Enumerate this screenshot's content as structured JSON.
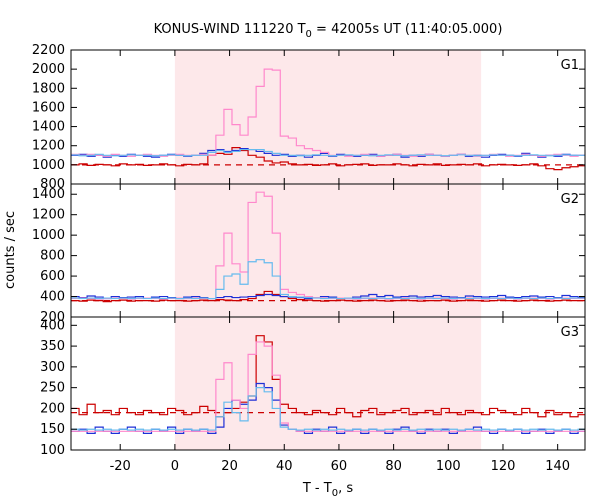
{
  "chart_data": {
    "type": "line",
    "title_main": "KONUS-WIND 111220 T",
    "title_sub": "0",
    "title_rest": " = 42005s UT (11:40:05.000)",
    "xlabel_main": "T - T",
    "xlabel_sub": "0",
    "xlabel_rest": ", s",
    "ylabel": "counts / sec",
    "xlim": [
      -38,
      150
    ],
    "xticks": [
      -20,
      0,
      20,
      40,
      60,
      80,
      100,
      120,
      140
    ],
    "highlight_interval": [
      0,
      112
    ],
    "grid": false,
    "colors": {
      "highlight": "#fde8ea",
      "G1": "#cc0000",
      "G2": "#1f2fd6",
      "G3": "#ff88cc",
      "G2_G3": "#66bbee",
      "background_level": "#cc0000",
      "axis": "#000000"
    },
    "bin_width": 2.944,
    "panels": [
      {
        "name": "G1",
        "ylim": [
          800,
          2200
        ],
        "yticks": [
          800,
          1000,
          1200,
          1400,
          1600,
          1800,
          2000,
          2200
        ],
        "yticklabels": [
          "800",
          "1000",
          "1200",
          "1400",
          "1600",
          "1800",
          "2000",
          "2200"
        ],
        "background_level": 1000,
        "series": [
          {
            "color_key": "G1",
            "values": [
              1000,
              1010,
              995,
              1005,
              1000,
              990,
              1010,
              1000,
              1005,
              995,
              1000,
              1010,
              1000,
              990,
              1005,
              1000,
              1010,
              1100,
              1120,
              1110,
              1180,
              1150,
              1100,
              1080,
              1040,
              1020,
              1030,
              1010,
              1000,
              1005,
              995,
              1000,
              1010,
              990,
              1000,
              1005,
              1010,
              995,
              1000,
              1000,
              1010,
              1000,
              990,
              1005,
              1000,
              1010,
              995,
              1000,
              1005,
              1000,
              1010,
              990,
              1000,
              1005,
              1000,
              995,
              1000,
              1010,
              990,
              960,
              950,
              970,
              980,
              990
            ]
          },
          {
            "color_key": "G2",
            "values": [
              1100,
              1110,
              1090,
              1100,
              1080,
              1100,
              1090,
              1110,
              1100,
              1090,
              1080,
              1100,
              1110,
              1100,
              1090,
              1100,
              1120,
              1150,
              1160,
              1140,
              1150,
              1170,
              1160,
              1140,
              1120,
              1100,
              1110,
              1090,
              1100,
              1080,
              1100,
              1120,
              1090,
              1110,
              1100,
              1090,
              1100,
              1110,
              1090,
              1100,
              1110,
              1080,
              1100,
              1090,
              1110,
              1100,
              1090,
              1100,
              1110,
              1090,
              1100,
              1080,
              1100,
              1110,
              1100,
              1090,
              1120,
              1100,
              1080,
              1100,
              1090,
              1110,
              1100,
              1100
            ]
          },
          {
            "color_key": "G3",
            "values": [
              1110,
              1100,
              1110,
              1100,
              1090,
              1110,
              1100,
              1090,
              1100,
              1110,
              1100,
              1090,
              1100,
              1110,
              1100,
              1100,
              1110,
              1100,
              1310,
              1580,
              1420,
              1310,
              1500,
              1820,
              2000,
              1990,
              1300,
              1280,
              1200,
              1170,
              1150,
              1130,
              1100,
              1100,
              1090,
              1100,
              1110,
              1100,
              1090,
              1100,
              1110,
              1100,
              1090,
              1100,
              1110,
              1100,
              1090,
              1100,
              1110,
              1100,
              1090,
              1100,
              1110,
              1100,
              1090,
              1100,
              1110,
              1100,
              1090,
              1100,
              1110,
              1100,
              1090,
              1100
            ]
          },
          {
            "color_key": "G2_G3",
            "values": [
              1105,
              1095,
              1100,
              1110,
              1100,
              1095,
              1100,
              1105,
              1100,
              1100,
              1095,
              1100,
              1105,
              1100,
              1095,
              1100,
              1100,
              1130,
              1150,
              1130,
              1140,
              1160,
              1160,
              1160,
              1140,
              1120,
              1100,
              1100,
              1095,
              1100,
              1105,
              1100,
              1095,
              1100,
              1105,
              1100,
              1100,
              1095,
              1100,
              1105,
              1100,
              1095,
              1100,
              1105,
              1100,
              1100,
              1095,
              1100,
              1105,
              1100,
              1095,
              1100,
              1105,
              1100,
              1100,
              1095,
              1100,
              1105,
              1100,
              1095,
              1100,
              1105,
              1100,
              1100
            ]
          }
        ]
      },
      {
        "name": "G2",
        "ylim": [
          200,
          1500
        ],
        "yticks": [
          200,
          400,
          600,
          800,
          1000,
          1200,
          1400
        ],
        "yticklabels": [
          "200",
          "400",
          "600",
          "800",
          "1000",
          "1200",
          "1400"
        ],
        "background_level": 360,
        "series": [
          {
            "color_key": "G1",
            "values": [
              360,
              355,
              365,
              360,
              350,
              360,
              365,
              355,
              360,
              360,
              355,
              365,
              360,
              360,
              355,
              360,
              365,
              360,
              370,
              365,
              360,
              370,
              380,
              420,
              450,
              420,
              400,
              380,
              370,
              365,
              360,
              355,
              360,
              365,
              360,
              355,
              360,
              365,
              360,
              355,
              360,
              365,
              360,
              355,
              360,
              360,
              365,
              355,
              360,
              365,
              360,
              355,
              360,
              365,
              360,
              355,
              360,
              365,
              360,
              355,
              360,
              365,
              360,
              360
            ]
          },
          {
            "color_key": "G2",
            "values": [
              400,
              390,
              405,
              395,
              380,
              400,
              390,
              395,
              400,
              385,
              395,
              400,
              390,
              380,
              395,
              400,
              390,
              380,
              390,
              400,
              390,
              395,
              400,
              410,
              420,
              410,
              400,
              395,
              390,
              380,
              390,
              400,
              395,
              385,
              380,
              395,
              405,
              420,
              400,
              410,
              395,
              400,
              405,
              395,
              400,
              410,
              400,
              395,
              390,
              405,
              400,
              395,
              400,
              410,
              395,
              390,
              400,
              405,
              395,
              400,
              390,
              410,
              400,
              390
            ]
          },
          {
            "color_key": "G3",
            "values": [
              380,
              385,
              380,
              375,
              380,
              385,
              380,
              375,
              380,
              385,
              380,
              375,
              380,
              385,
              380,
              385,
              380,
              380,
              700,
              1020,
              720,
              640,
              1320,
              1420,
              1380,
              1020,
              470,
              440,
              420,
              400,
              390,
              385,
              380,
              385,
              380,
              375,
              380,
              385,
              380,
              375,
              380,
              385,
              380,
              375,
              380,
              385,
              380,
              375,
              380,
              385,
              380,
              375,
              380,
              385,
              380,
              375,
              380,
              385,
              380,
              375,
              380,
              385,
              380,
              380
            ]
          },
          {
            "color_key": "G2_G3",
            "values": [
              385,
              380,
              385,
              380,
              385,
              380,
              385,
              380,
              385,
              380,
              385,
              380,
              385,
              380,
              385,
              380,
              385,
              380,
              470,
              600,
              620,
              520,
              740,
              760,
              730,
              600,
              420,
              400,
              395,
              390,
              385,
              380,
              385,
              380,
              385,
              380,
              385,
              380,
              385,
              380,
              385,
              380,
              385,
              380,
              385,
              380,
              385,
              380,
              385,
              380,
              385,
              380,
              385,
              380,
              385,
              380,
              385,
              380,
              385,
              380,
              385,
              380,
              385,
              385
            ]
          }
        ]
      },
      {
        "name": "G3",
        "ylim": [
          100,
          420
        ],
        "yticks": [
          100,
          150,
          200,
          250,
          300,
          350,
          400
        ],
        "yticklabels": [
          "100",
          "150",
          "200",
          "250",
          "300",
          "350",
          "400"
        ],
        "background_level": 190,
        "series": [
          {
            "color_key": "G1",
            "values": [
              200,
              185,
              210,
              190,
              195,
              185,
              200,
              190,
              185,
              195,
              190,
              185,
              200,
              195,
              185,
              190,
              205,
              195,
              180,
              190,
              200,
              215,
              230,
              375,
              360,
              270,
              210,
              200,
              190,
              185,
              195,
              190,
              185,
              200,
              190,
              180,
              195,
              200,
              185,
              190,
              195,
              200,
              185,
              190,
              195,
              185,
              200,
              190,
              185,
              195,
              190,
              185,
              200,
              195,
              190,
              185,
              200,
              190,
              180,
              195,
              185,
              190,
              180,
              185
            ]
          },
          {
            "color_key": "G2",
            "values": [
              145,
              150,
              140,
              155,
              145,
              140,
              150,
              155,
              145,
              140,
              150,
              145,
              155,
              140,
              150,
              145,
              150,
              140,
              155,
              200,
              220,
              210,
              220,
              260,
              250,
              220,
              160,
              150,
              145,
              140,
              150,
              145,
              155,
              140,
              145,
              150,
              140,
              150,
              145,
              140,
              150,
              155,
              145,
              140,
              150,
              145,
              150,
              140,
              145,
              150,
              155,
              145,
              140,
              150,
              145,
              150,
              140,
              145,
              150,
              140,
              145,
              150,
              140,
              145
            ]
          },
          {
            "color_key": "G3",
            "values": [
              145,
              145,
              145,
              145,
              145,
              145,
              145,
              145,
              145,
              145,
              145,
              145,
              145,
              145,
              145,
              145,
              145,
              145,
              270,
              310,
              220,
              200,
              330,
              360,
              350,
              280,
              165,
              150,
              145,
              145,
              145,
              145,
              145,
              145,
              145,
              145,
              145,
              145,
              145,
              145,
              145,
              145,
              145,
              145,
              145,
              145,
              145,
              145,
              145,
              145,
              145,
              145,
              145,
              145,
              145,
              145,
              145,
              145,
              145,
              145,
              145,
              145,
              145,
              145
            ]
          },
          {
            "color_key": "G2_G3",
            "values": [
              150,
              148,
              150,
              148,
              150,
              148,
              150,
              148,
              150,
              148,
              150,
              148,
              150,
              148,
              150,
              148,
              150,
              148,
              180,
              215,
              190,
              170,
              230,
              250,
              240,
              200,
              155,
              150,
              148,
              150,
              148,
              150,
              148,
              150,
              148,
              150,
              148,
              150,
              148,
              150,
              148,
              150,
              148,
              150,
              148,
              150,
              148,
              150,
              148,
              150,
              148,
              150,
              148,
              150,
              148,
              150,
              148,
              150,
              148,
              150,
              148,
              150,
              148,
              150
            ]
          }
        ]
      }
    ]
  }
}
